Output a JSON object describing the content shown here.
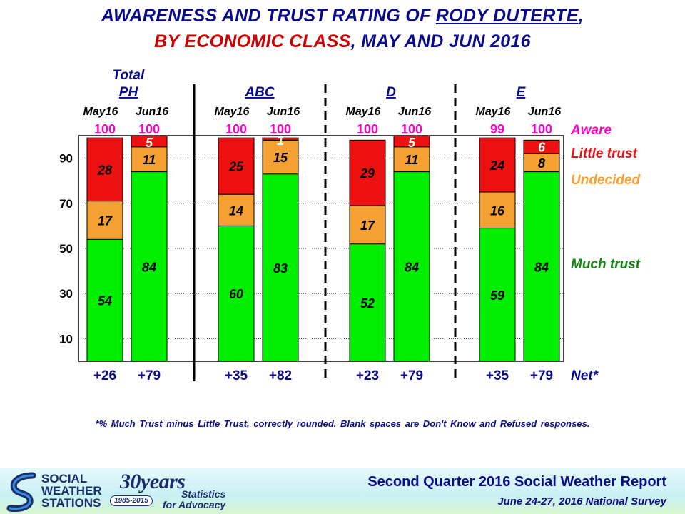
{
  "title": {
    "line1_pre": "AWARENESS AND TRUST RATING OF ",
    "line1_name": "RODY DUTERTE",
    "line1_post": ",",
    "line2_red": "BY ECONOMIC CLASS",
    "line2_rest": ", MAY AND JUN 2016"
  },
  "colors": {
    "much_trust": "#00ee00",
    "undecided": "#f5a033",
    "little_trust": "#ee1111",
    "aware": "#ff00cc",
    "net": "#0a0a8c",
    "title": "#0a0a8c"
  },
  "chart_data": {
    "type": "bar",
    "stacked": true,
    "ylim": [
      0,
      100
    ],
    "yticks": [
      10,
      30,
      50,
      70,
      90
    ],
    "grid": true,
    "legend_position": "right",
    "groups": [
      {
        "name": "PH",
        "prefix": "Total",
        "periods": [
          "May16",
          "Jun16"
        ]
      },
      {
        "name": "ABC",
        "prefix": "",
        "periods": [
          "May16",
          "Jun16"
        ]
      },
      {
        "name": "D",
        "prefix": "",
        "periods": [
          "May16",
          "Jun16"
        ]
      },
      {
        "name": "E",
        "prefix": "",
        "periods": [
          "May16",
          "Jun16"
        ]
      }
    ],
    "bars": [
      {
        "group": "PH",
        "period": "May16",
        "much_trust": 54,
        "undecided": 17,
        "little_trust": 28,
        "aware": "100",
        "net": "+26"
      },
      {
        "group": "PH",
        "period": "Jun16",
        "much_trust": 84,
        "undecided": 11,
        "little_trust": 5,
        "aware": "100",
        "net": "+79"
      },
      {
        "group": "ABC",
        "period": "May16",
        "much_trust": 60,
        "undecided": 14,
        "little_trust": 25,
        "aware": "100",
        "net": "+35"
      },
      {
        "group": "ABC",
        "period": "Jun16",
        "much_trust": 83,
        "undecided": 15,
        "little_trust": 1,
        "aware": "100",
        "net": "+82"
      },
      {
        "group": "D",
        "period": "May16",
        "much_trust": 52,
        "undecided": 17,
        "little_trust": 29,
        "aware": "100",
        "net": "+23"
      },
      {
        "group": "D",
        "period": "Jun16",
        "much_trust": 84,
        "undecided": 11,
        "little_trust": 5,
        "aware": "100",
        "net": "+79"
      },
      {
        "group": "E",
        "period": "May16",
        "much_trust": 59,
        "undecided": 16,
        "little_trust": 24,
        "aware": "99",
        "net": "+35"
      },
      {
        "group": "E",
        "period": "Jun16",
        "much_trust": 84,
        "undecided": 8,
        "little_trust": 6,
        "aware": "100",
        "net": "+79"
      }
    ],
    "legend": {
      "aware": "Aware",
      "little_trust": "Little trust",
      "undecided": "Undecided",
      "much_trust": "Much trust",
      "net": "Net*"
    }
  },
  "footnote": "*% Much Trust minus Little Trust, correctly rounded. Blank spaces are Don't Know and Refused responses.",
  "footer": {
    "logo_lines": [
      "SOCIAL",
      "WEATHER",
      "STATIONS"
    ],
    "years": "30years",
    "years_range": "1985-2015",
    "tagline_1": "Statistics",
    "tagline_2": "for Advocacy",
    "report_title": "Second Quarter 2016 Social Weather Report",
    "report_subtitle": "June 24-27, 2016 National Survey"
  }
}
